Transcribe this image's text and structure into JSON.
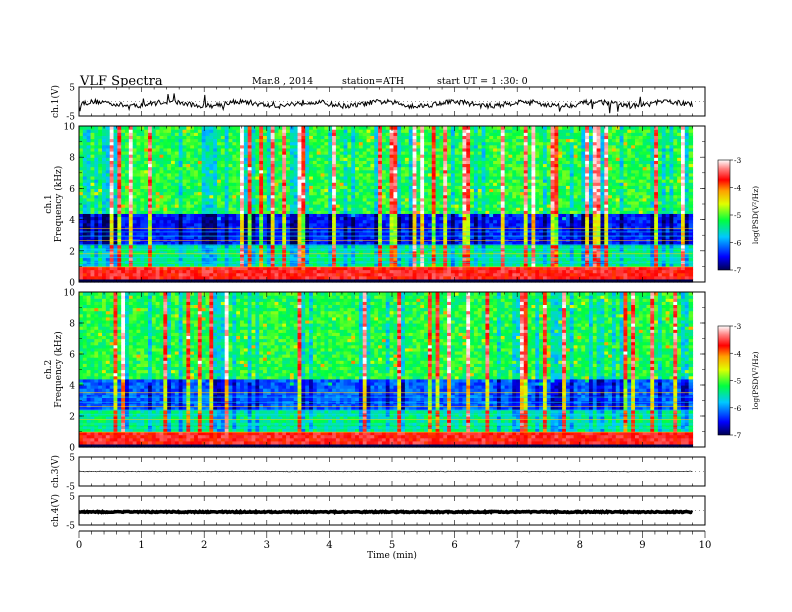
{
  "header": {
    "title": "VLF  Spectra",
    "date": "Mar.8  , 2014",
    "station": "station=ATH",
    "start": "start  UT =   1  :30: 0"
  },
  "colors": {
    "background": "#ffffff",
    "axis": "#000000",
    "spectrogram_low": "#000060",
    "spectrogram_mid": "#00c8ff",
    "spectrogram_high": "#e00000"
  },
  "chart_data": [
    {
      "type": "line",
      "ylabel": "ch.1(V)",
      "yticks": [
        "5",
        "-5"
      ],
      "ylim": [
        -5,
        5
      ],
      "xlim": [
        0,
        10
      ]
    },
    {
      "type": "heatmap",
      "ylabel": "Frequency (kHz)",
      "channel": "ch.1",
      "yticks": [
        "0",
        "2",
        "4",
        "6",
        "8",
        "10"
      ],
      "ylim": [
        0,
        10
      ],
      "xlim": [
        0,
        10
      ],
      "colorbar": {
        "label": "log(PSD(V²/Hz)",
        "ticks": [
          "-3",
          "-4",
          "-5",
          "-6",
          "-7"
        ],
        "range": [
          -7,
          -3
        ]
      }
    },
    {
      "type": "heatmap",
      "ylabel": "Frequency (kHz)",
      "channel": "ch.2",
      "yticks": [
        "0",
        "2",
        "4",
        "6",
        "8",
        "10"
      ],
      "ylim": [
        0,
        10
      ],
      "xlim": [
        0,
        10
      ],
      "colorbar": {
        "label": "log(PSD(V²/Hz)",
        "ticks": [
          "-3",
          "-4",
          "-5",
          "-6",
          "-7"
        ],
        "range": [
          -7,
          -3
        ]
      }
    },
    {
      "type": "line",
      "ylabel": "ch.3(V)",
      "yticks": [
        "5",
        "-5"
      ],
      "ylim": [
        -5,
        5
      ],
      "xlim": [
        0,
        10
      ]
    },
    {
      "type": "line",
      "ylabel": "ch.4(V)",
      "yticks": [
        "5",
        "-5"
      ],
      "ylim": [
        -5,
        5
      ],
      "xlim": [
        0,
        10
      ]
    }
  ],
  "xaxis": {
    "label": "Time  (min)",
    "ticks": [
      "0",
      "1",
      "2",
      "3",
      "4",
      "5",
      "6",
      "7",
      "8",
      "9",
      "10"
    ],
    "range": [
      0,
      10
    ],
    "data_end": 9.8
  }
}
